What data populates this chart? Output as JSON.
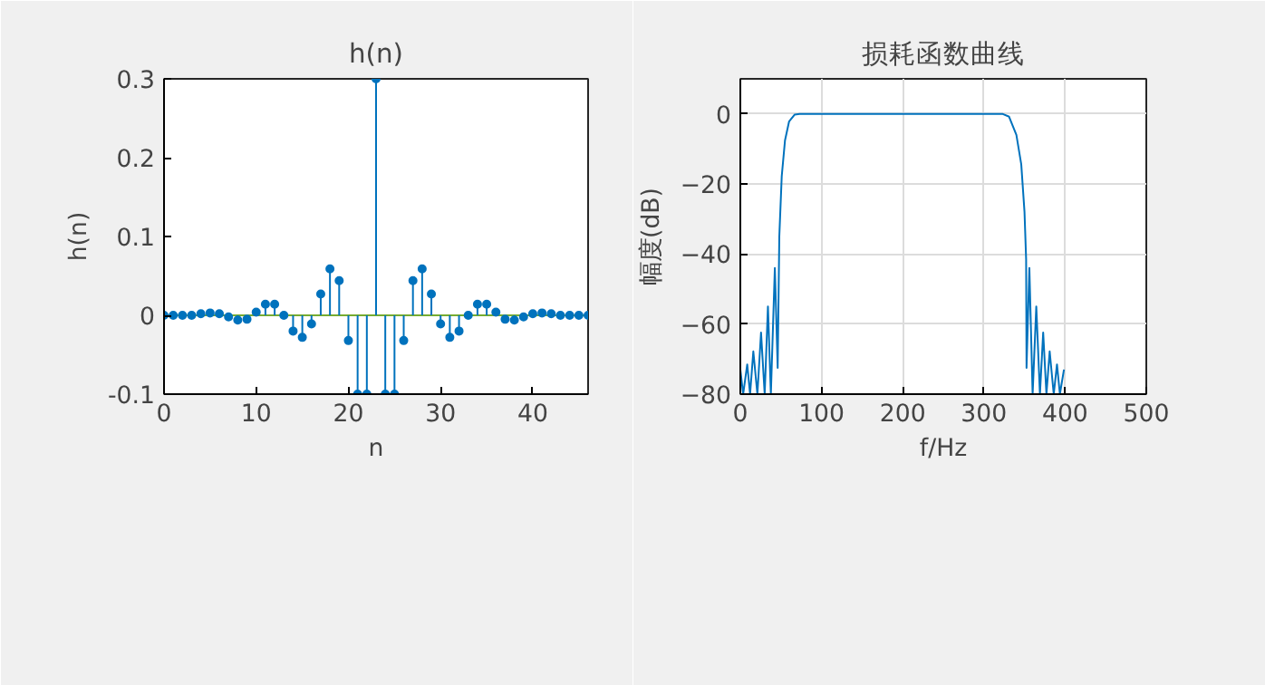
{
  "chart_data": [
    {
      "type": "lollipop",
      "title": "h(n)",
      "xlabel": "n",
      "ylabel": "h(n)",
      "x": [
        0,
        1,
        2,
        3,
        4,
        5,
        6,
        7,
        8,
        9,
        10,
        11,
        12,
        13,
        14,
        15,
        16,
        17,
        18,
        19,
        20,
        21,
        22,
        23,
        24,
        25,
        26,
        27,
        28,
        29,
        30,
        31,
        32,
        33,
        34,
        35,
        36,
        37,
        38,
        39,
        40,
        41,
        42,
        43,
        44,
        45,
        46
      ],
      "values": [
        0,
        0,
        0,
        0,
        0.002,
        0.003,
        0.002,
        -0.002,
        -0.006,
        -0.005,
        0.004,
        0.014,
        0.014,
        0,
        -0.02,
        -0.028,
        -0.011,
        0.027,
        0.059,
        0.044,
        -0.032,
        -0.1,
        -0.1,
        0.3,
        -0.1,
        -0.1,
        -0.032,
        0.044,
        0.059,
        0.027,
        -0.011,
        -0.028,
        -0.02,
        0,
        0.014,
        0.014,
        0.004,
        -0.005,
        -0.006,
        -0.002,
        0.002,
        0.003,
        0.002,
        0,
        0,
        0,
        0
      ],
      "color": "#0072bd",
      "marker": "circle",
      "xlim": [
        0,
        46
      ],
      "ylim": [
        -0.1,
        0.3
      ],
      "xticks": [
        0,
        10,
        20,
        30,
        40
      ],
      "yticks": [
        {
          "value": -0.1,
          "label": "-0.1"
        },
        0,
        {
          "value": 0.1,
          "label": "0.1"
        },
        {
          "value": 0.2,
          "label": "0.2"
        },
        {
          "value": 0.3,
          "label": "0.3"
        }
      ],
      "ref_lines": [
        {
          "axis": "y",
          "value": 0,
          "color": "#77ac30"
        }
      ],
      "grid": false
    },
    {
      "type": "line",
      "title": "损耗函数曲线",
      "xlabel": "f/Hz",
      "ylabel": "幅度(dB)",
      "x": [
        0,
        3.5,
        8.5,
        12,
        16,
        21,
        25.5,
        30,
        34,
        37.6,
        42.5,
        46,
        48,
        51,
        55,
        60,
        67,
        73,
        322.7,
        331,
        340,
        346,
        350,
        352,
        352.5,
        356,
        360,
        364.5,
        369,
        373,
        377,
        381,
        386,
        390,
        393.6,
        398.6
      ],
      "values": [
        -73,
        -80,
        -71.5,
        -80,
        -67.8,
        -80,
        -62.4,
        -80,
        -55,
        -80,
        -44,
        -72.5,
        -35,
        -17.8,
        -7.6,
        -2.2,
        -0.2,
        0,
        0,
        -0.8,
        -6,
        -14.4,
        -28,
        -41.5,
        -72.5,
        -44,
        -80,
        -55,
        -80,
        -62.4,
        -80,
        -67.8,
        -80,
        -71.5,
        -80,
        -73
      ],
      "color": "#0072bd",
      "line_style": "solid",
      "xlim": [
        0,
        500
      ],
      "ylim": [
        -80,
        10
      ],
      "xticks": [
        0,
        100,
        200,
        300,
        400,
        500
      ],
      "yticks": [
        -80,
        -60,
        -40,
        -20,
        0
      ],
      "grid": true
    }
  ]
}
